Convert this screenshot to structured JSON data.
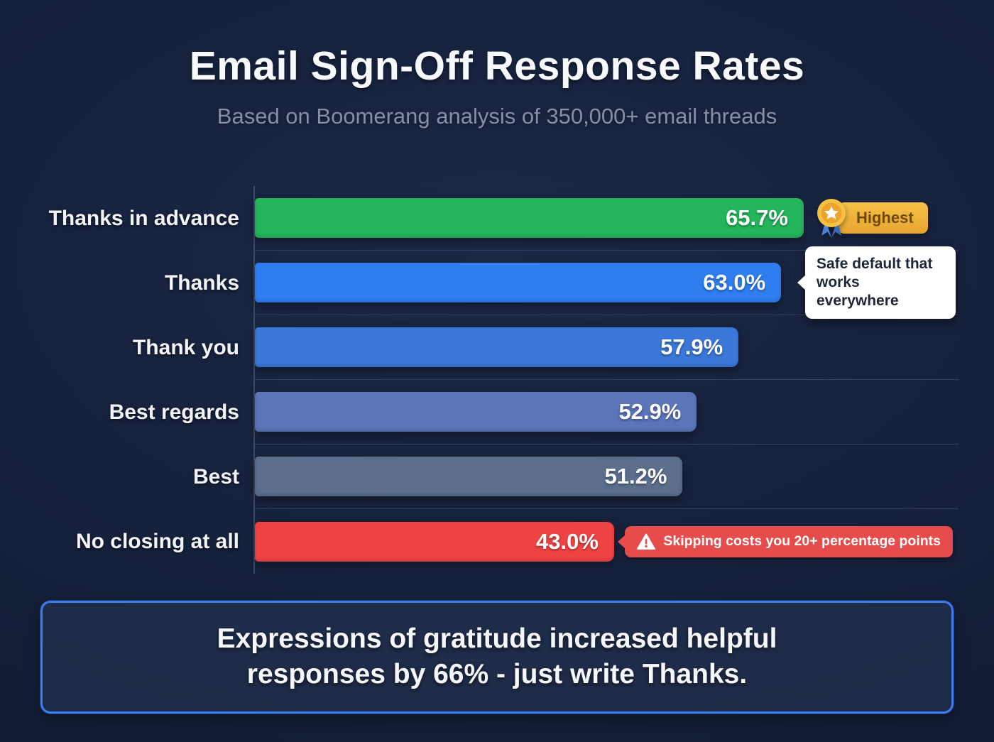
{
  "title": "Email Sign-Off Response Rates",
  "subtitle": "Based on Boomerang analysis of 350,000+ email threads",
  "chart_data": {
    "type": "bar",
    "orientation": "horizontal",
    "title": "Email Sign-Off Response Rates",
    "subtitle": "Based on Boomerang analysis of 350,000+ email threads",
    "categories": [
      "Thanks in advance",
      "Thanks",
      "Thank you",
      "Best regards",
      "Best",
      "No closing at all"
    ],
    "values": [
      65.7,
      63.0,
      57.9,
      52.9,
      51.2,
      43.0
    ],
    "value_labels": [
      "65.7%",
      "63.0%",
      "57.9%",
      "52.9%",
      "51.2%",
      "43.0%"
    ],
    "unit": "%",
    "xlim": [
      0,
      86
    ],
    "gridlines": false,
    "legend": "none",
    "bar_colors": [
      "#23b45c",
      "#2e7ef0",
      "#3a77d8",
      "#5b75b9",
      "#5b6e8c",
      "#ee4343"
    ],
    "annotations": [
      {
        "row": 0,
        "type": "badge",
        "label": "Highest",
        "icon": "medal-icon",
        "bg": "#efb13d",
        "text_color": "#6f4a10"
      },
      {
        "row": 1,
        "type": "tooltip",
        "label": "Safe default that works everywhere",
        "icon": "none",
        "bg": "#ffffff",
        "text_color": "#1e2637"
      },
      {
        "row": 5,
        "type": "warning",
        "label": "Skipping costs you 20+ percentage points",
        "icon": "warning-icon",
        "bg": "#e64c4c",
        "text_color": "#ffffff"
      }
    ]
  },
  "footer": {
    "lines": [
      "Expressions of gratitude increased helpful",
      "responses by 66% - just write Thanks."
    ]
  },
  "colors": {
    "background": "#15203a",
    "title_text": "#f7f9fc",
    "subtitle_text": "#868fa5",
    "axis_line": "#3d4a66",
    "row_separator": "#2b3a59",
    "callout_border": "#3b7cf0",
    "highest_green": "#23b45c",
    "warning_red": "#ee4343",
    "badge_gold": "#efb13d"
  }
}
